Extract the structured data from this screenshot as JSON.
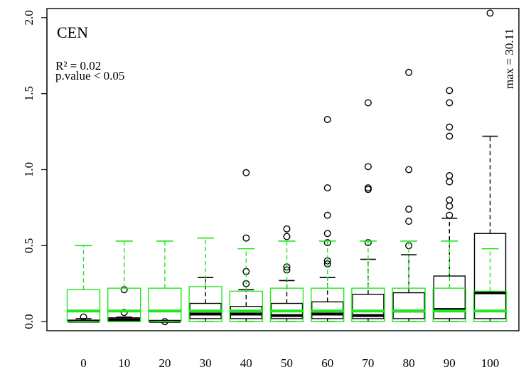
{
  "chart_data": {
    "type": "boxplot",
    "title": "CEN",
    "xlabel": "",
    "ylabel": "",
    "ylim": [
      -0.06,
      2.06
    ],
    "y_ticks": [
      "0.0",
      "0.5",
      "1.0",
      "1.5",
      "2.0"
    ],
    "y_tick_values": [
      0.0,
      0.5,
      1.0,
      1.5,
      2.0
    ],
    "categories": [
      "0",
      "10",
      "20",
      "30",
      "40",
      "50",
      "60",
      "70",
      "80",
      "90",
      "100"
    ],
    "annotations": {
      "r_squared": "R² = 0.02",
      "p_value": "p.value  < 0.05",
      "max_label": "max = 30.11"
    },
    "series": [
      {
        "color": "#000000",
        "boxes": [
          {
            "lower_whisker": 0.0,
            "q1": 0.0,
            "median": 0.003,
            "q3": 0.01,
            "upper_whisker": 0.02,
            "outliers": [
              0.03
            ]
          },
          {
            "lower_whisker": 0.0,
            "q1": 0.002,
            "median": 0.012,
            "q3": 0.025,
            "upper_whisker": 0.03,
            "outliers": [
              0.06,
              0.21
            ]
          },
          {
            "lower_whisker": 0.0,
            "q1": 0.0,
            "median": 0.002,
            "q3": 0.005,
            "upper_whisker": 0.006,
            "outliers": [
              0.0
            ]
          },
          {
            "lower_whisker": 0.0,
            "q1": 0.02,
            "median": 0.05,
            "q3": 0.12,
            "upper_whisker": 0.29,
            "outliers": []
          },
          {
            "lower_whisker": 0.0,
            "q1": 0.02,
            "median": 0.05,
            "q3": 0.1,
            "upper_whisker": 0.21,
            "outliers": [
              0.25,
              0.33,
              0.55,
              0.98
            ]
          },
          {
            "lower_whisker": 0.0,
            "q1": 0.02,
            "median": 0.04,
            "q3": 0.12,
            "upper_whisker": 0.27,
            "outliers": [
              0.34,
              0.36,
              0.56,
              0.61
            ]
          },
          {
            "lower_whisker": 0.0,
            "q1": 0.02,
            "median": 0.05,
            "q3": 0.13,
            "upper_whisker": 0.29,
            "outliers": [
              0.38,
              0.4,
              0.52,
              0.58,
              0.7,
              0.88,
              1.33
            ]
          },
          {
            "lower_whisker": 0.0,
            "q1": 0.02,
            "median": 0.04,
            "q3": 0.18,
            "upper_whisker": 0.41,
            "outliers": [
              0.52,
              0.87,
              0.88,
              1.02,
              1.44
            ]
          },
          {
            "lower_whisker": 0.0,
            "q1": 0.02,
            "median": 0.07,
            "q3": 0.19,
            "upper_whisker": 0.44,
            "outliers": [
              0.5,
              0.66,
              0.74,
              1.0,
              1.64
            ]
          },
          {
            "lower_whisker": 0.0,
            "q1": 0.02,
            "median": 0.08,
            "q3": 0.3,
            "upper_whisker": 0.68,
            "outliers": [
              0.7,
              0.76,
              0.8,
              0.92,
              0.96,
              1.22,
              1.28,
              1.44,
              1.52
            ]
          },
          {
            "lower_whisker": 0.0,
            "q1": 0.02,
            "median": 0.19,
            "q3": 0.58,
            "upper_whisker": 1.22,
            "outliers": [
              2.03
            ]
          }
        ]
      },
      {
        "color": "#22e622",
        "boxes": [
          {
            "lower_whisker": 0.0,
            "q1": 0.0,
            "median": 0.07,
            "q3": 0.21,
            "upper_whisker": 0.5
          },
          {
            "lower_whisker": 0.0,
            "q1": 0.0,
            "median": 0.07,
            "q3": 0.22,
            "upper_whisker": 0.53
          },
          {
            "lower_whisker": 0.0,
            "q1": 0.0,
            "median": 0.07,
            "q3": 0.22,
            "upper_whisker": 0.53
          },
          {
            "lower_whisker": 0.0,
            "q1": 0.0,
            "median": 0.07,
            "q3": 0.23,
            "upper_whisker": 0.55
          },
          {
            "lower_whisker": 0.0,
            "q1": 0.0,
            "median": 0.07,
            "q3": 0.2,
            "upper_whisker": 0.48
          },
          {
            "lower_whisker": 0.0,
            "q1": 0.0,
            "median": 0.07,
            "q3": 0.22,
            "upper_whisker": 0.53
          },
          {
            "lower_whisker": 0.0,
            "q1": 0.0,
            "median": 0.07,
            "q3": 0.22,
            "upper_whisker": 0.53
          },
          {
            "lower_whisker": 0.0,
            "q1": 0.0,
            "median": 0.07,
            "q3": 0.22,
            "upper_whisker": 0.53
          },
          {
            "lower_whisker": 0.0,
            "q1": 0.0,
            "median": 0.07,
            "q3": 0.22,
            "upper_whisker": 0.53
          },
          {
            "lower_whisker": 0.0,
            "q1": 0.0,
            "median": 0.07,
            "q3": 0.22,
            "upper_whisker": 0.53
          },
          {
            "lower_whisker": 0.0,
            "q1": 0.0,
            "median": 0.07,
            "q3": 0.2,
            "upper_whisker": 0.48
          }
        ]
      }
    ]
  }
}
